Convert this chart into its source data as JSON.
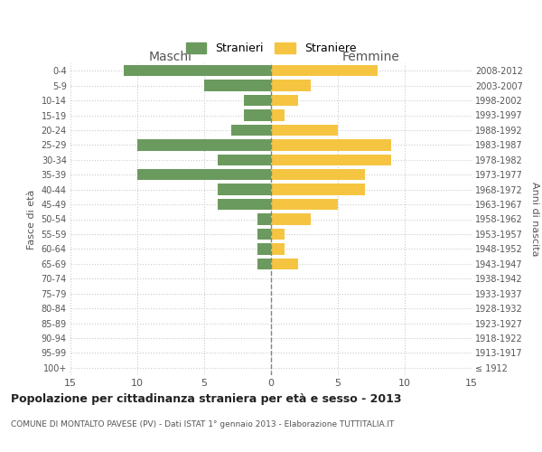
{
  "age_groups": [
    "100+",
    "95-99",
    "90-94",
    "85-89",
    "80-84",
    "75-79",
    "70-74",
    "65-69",
    "60-64",
    "55-59",
    "50-54",
    "45-49",
    "40-44",
    "35-39",
    "30-34",
    "25-29",
    "20-24",
    "15-19",
    "10-14",
    "5-9",
    "0-4"
  ],
  "birth_years": [
    "≤ 1912",
    "1913-1917",
    "1918-1922",
    "1923-1927",
    "1928-1932",
    "1933-1937",
    "1938-1942",
    "1943-1947",
    "1948-1952",
    "1953-1957",
    "1958-1962",
    "1963-1967",
    "1968-1972",
    "1973-1977",
    "1978-1982",
    "1983-1987",
    "1988-1992",
    "1993-1997",
    "1998-2002",
    "2003-2007",
    "2008-2012"
  ],
  "maschi": [
    0,
    0,
    0,
    0,
    0,
    0,
    0,
    1,
    1,
    1,
    1,
    4,
    4,
    10,
    4,
    10,
    3,
    2,
    2,
    5,
    11
  ],
  "femmine": [
    0,
    0,
    0,
    0,
    0,
    0,
    0,
    2,
    1,
    1,
    3,
    5,
    7,
    7,
    9,
    9,
    5,
    1,
    2,
    3,
    8
  ],
  "color_maschi": "#6b9a5e",
  "color_femmine": "#f5c542",
  "title": "Popolazione per cittadinanza straniera per età e sesso - 2013",
  "subtitle": "COMUNE DI MONTALTO PAVESE (PV) - Dati ISTAT 1° gennaio 2013 - Elaborazione TUTTITALIA.IT",
  "xlabel_left": "Maschi",
  "xlabel_right": "Femmine",
  "ylabel_left": "Fasce di età",
  "ylabel_right": "Anni di nascita",
  "legend_maschi": "Stranieri",
  "legend_femmine": "Straniere",
  "xlim": 15,
  "background_color": "#ffffff",
  "grid_color": "#cccccc",
  "center_line_color": "#888866",
  "bar_height": 0.75
}
